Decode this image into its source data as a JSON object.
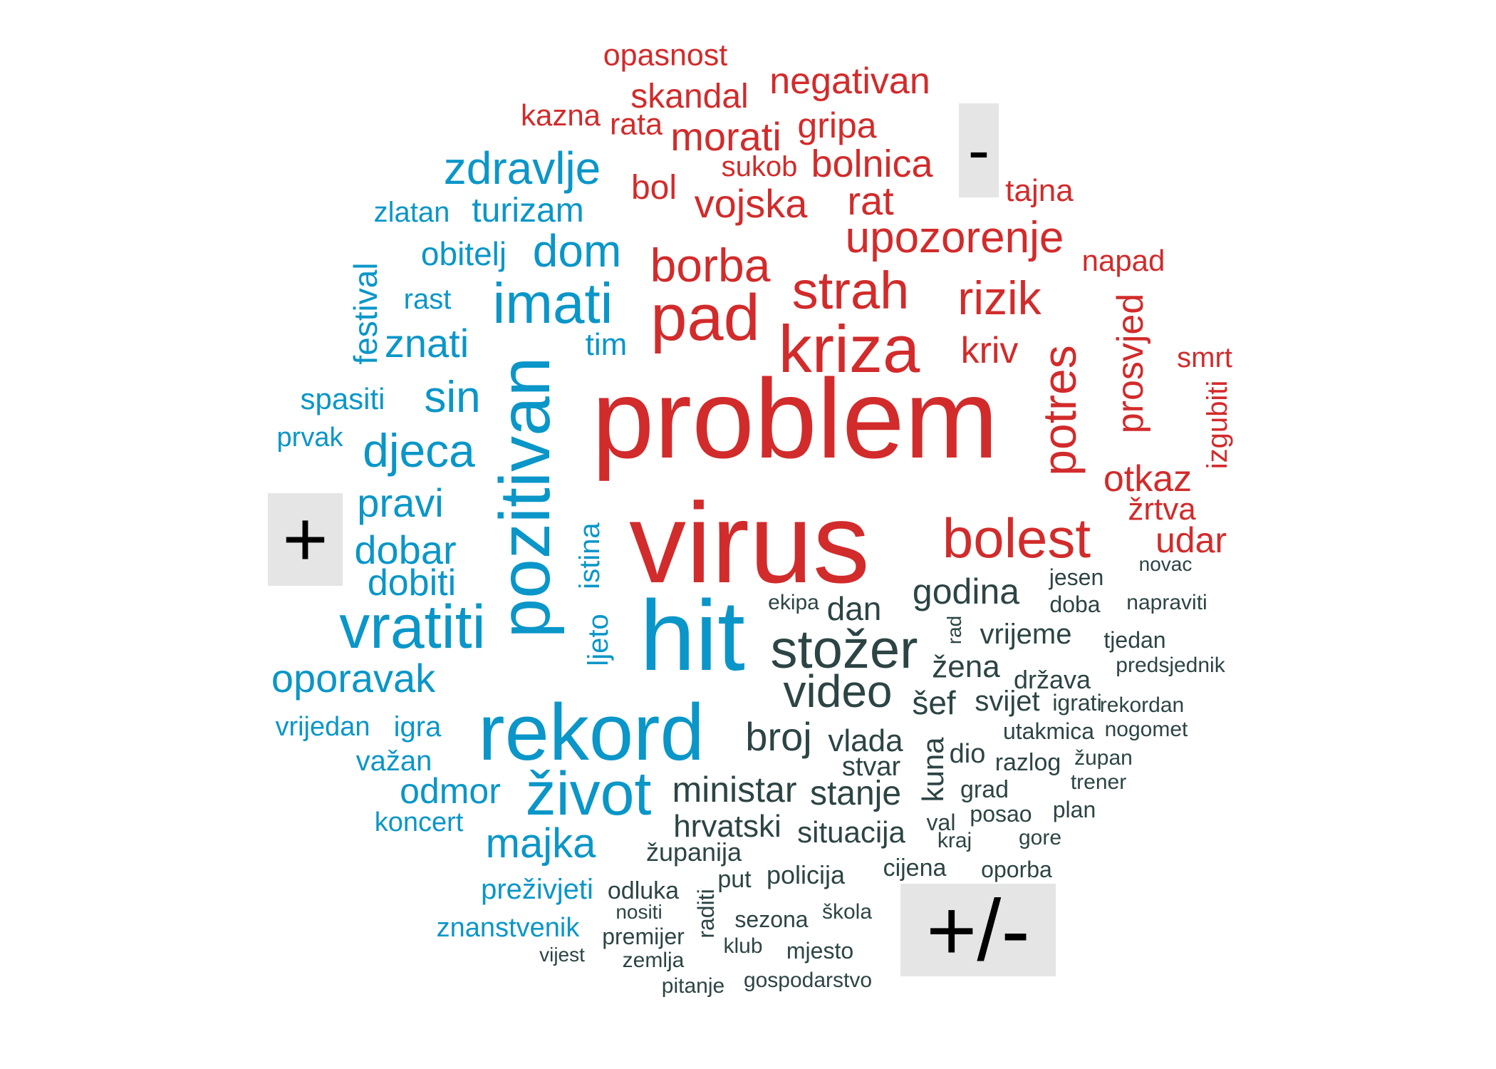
{
  "colors": {
    "negative": "#d22b2b",
    "positive": "#0a96c8",
    "neutral": "#2d4444",
    "legend_bg": "#e5e5e5"
  },
  "legend": {
    "negative": "-",
    "positive": "+",
    "mixed": "+/-"
  },
  "words": {
    "negative": [
      "opasnost",
      "negativan",
      "skandal",
      "kazna",
      "rata",
      "morati",
      "gripa",
      "sukob",
      "bolnica",
      "bol",
      "vojska",
      "rat",
      "tajna",
      "upozorenje",
      "borba",
      "napad",
      "strah",
      "pad",
      "rizik",
      "kriza",
      "kriv",
      "prosvjed",
      "potres",
      "smrt",
      "problem",
      "izgubiti",
      "otkaz",
      "žrtva",
      "bolest",
      "udar",
      "virus"
    ],
    "positive": [
      "zdravlje",
      "turizam",
      "zlatan",
      "dom",
      "obitelj",
      "imati",
      "festival",
      "rast",
      "znati",
      "tim",
      "spasiti",
      "sin",
      "prvak",
      "djeca",
      "pozitivan",
      "pravi",
      "dobar",
      "istina",
      "dobiti",
      "vratiti",
      "ljeto",
      "hit",
      "oporavak",
      "vrijedan",
      "igra",
      "rekord",
      "važan",
      "odmor",
      "život",
      "koncert",
      "majka",
      "preživjeti",
      "znanstvenik"
    ],
    "neutral": [
      "novac",
      "jesen",
      "godina",
      "ekipa",
      "dan",
      "doba",
      "napraviti",
      "rad",
      "vrijeme",
      "tjedan",
      "stožer",
      "žena",
      "predsjednik",
      "video",
      "država",
      "šef",
      "svijet",
      "igrati",
      "rekordan",
      "broj",
      "vlada",
      "utakmica",
      "nogomet",
      "kuna",
      "dio",
      "razlog",
      "župan",
      "stvar",
      "ministar",
      "trener",
      "stanje",
      "grad",
      "val",
      "posao",
      "plan",
      "hrvatski",
      "situacija",
      "kraj",
      "gore",
      "županija",
      "cijena",
      "oporba",
      "policija",
      "odluka",
      "put",
      "raditi",
      "nositi",
      "sezona",
      "škola",
      "premijer",
      "klub",
      "mjesto",
      "vijest",
      "zemlja",
      "pitanje",
      "gospodarstvo"
    ]
  }
}
